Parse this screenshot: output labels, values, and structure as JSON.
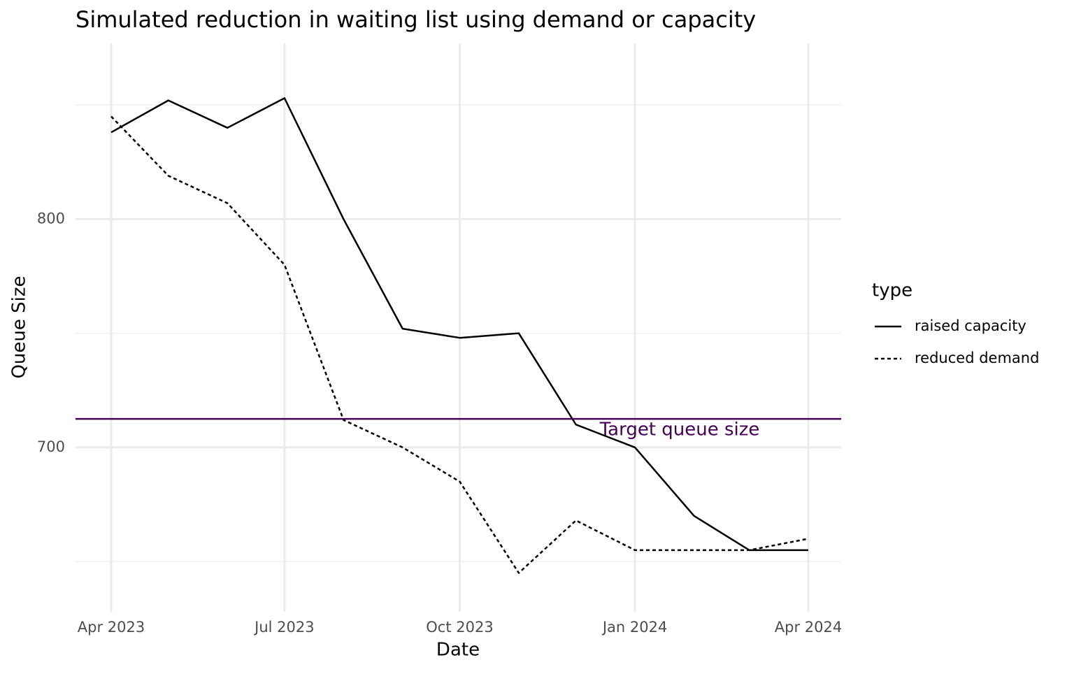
{
  "chart_data": {
    "type": "line",
    "title": "Simulated reduction in waiting list using demand or capacity",
    "x_label": "Date",
    "y_label": "Queue Size",
    "x": [
      "2023-04",
      "2023-05",
      "2023-06",
      "2023-07",
      "2023-08",
      "2023-09",
      "2023-10",
      "2023-11",
      "2023-12",
      "2024-01",
      "2024-02",
      "2024-03",
      "2024-04"
    ],
    "series": [
      {
        "name": "raised capacity",
        "color": "#000000",
        "dash": "solid",
        "values": [
          838,
          852,
          840,
          853,
          800,
          752,
          748,
          750,
          710,
          700,
          670,
          655,
          655
        ]
      },
      {
        "name": "reduced demand",
        "color": "#000000",
        "dash": "dotted",
        "values": [
          845,
          819,
          807,
          780,
          712,
          700,
          685,
          645,
          668,
          655,
          655,
          655,
          660
        ]
      }
    ],
    "xlim": [
      "2023-04",
      "2024-04"
    ],
    "xticks": [
      {
        "value": "2023-04",
        "label": "Apr 2023"
      },
      {
        "value": "2023-07",
        "label": "Jul 2023"
      },
      {
        "value": "2023-10",
        "label": "Oct 2023"
      },
      {
        "value": "2024-01",
        "label": "Jan 2024"
      },
      {
        "value": "2024-04",
        "label": "Apr 2024"
      }
    ],
    "ylim": [
      628,
      877
    ],
    "yticks": [
      700,
      800
    ],
    "yticks_minor": [
      650,
      750,
      850
    ],
    "grid": true,
    "hline": {
      "value": 712.5,
      "color": "#440154",
      "label": "Target queue size"
    },
    "legend": {
      "title": "type",
      "position": "right"
    }
  }
}
